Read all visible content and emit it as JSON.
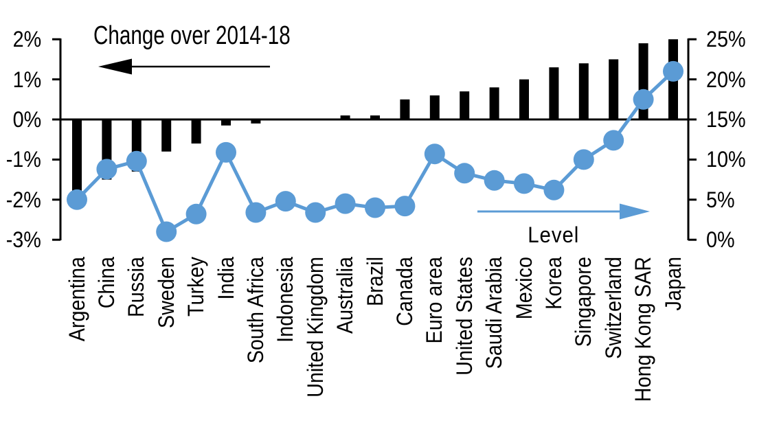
{
  "chart_data": {
    "type": "bar+line",
    "title": "Change over 2014-18",
    "categories": [
      "Argentina",
      "China",
      "Russia",
      "Sweden",
      "Turkey",
      "India",
      "South Africa",
      "Indonesia",
      "United Kingdom",
      "Australia",
      "Brazil",
      "Canada",
      "Euro area",
      "United States",
      "Saudi Arabia",
      "Mexico",
      "Korea",
      "Singapore",
      "Switzerland",
      "Hong Kong SAR",
      "Japan"
    ],
    "series": [
      {
        "name": "Change over 2014-18",
        "type": "bar",
        "axis": "left",
        "color": "#000000",
        "unit": "%",
        "values": [
          -1.8,
          -1.5,
          -1.3,
          -0.8,
          -0.6,
          -0.15,
          -0.1,
          0,
          0,
          0.1,
          0.1,
          0.5,
          0.6,
          0.7,
          0.8,
          1.0,
          1.3,
          1.4,
          1.5,
          1.9,
          2.0
        ]
      },
      {
        "name": "Level",
        "type": "line",
        "axis": "right",
        "color": "#5B9BD5",
        "unit": "%",
        "values": [
          5.0,
          8.8,
          9.8,
          1.0,
          3.2,
          10.9,
          3.4,
          4.8,
          3.4,
          4.5,
          4.0,
          4.2,
          10.7,
          8.3,
          7.4,
          7.0,
          6.2,
          10.0,
          12.4,
          17.5,
          21.0
        ]
      }
    ],
    "left_axis": {
      "tick_labels": [
        "2%",
        "1%",
        "0%",
        "-1%",
        "-2%",
        "-3%"
      ],
      "tick_values": [
        2,
        1,
        0,
        -1,
        -2,
        -3
      ],
      "min": -3,
      "max": 2
    },
    "right_axis": {
      "tick_labels": [
        "25%",
        "20%",
        "15%",
        "10%",
        "5%",
        "0%"
      ],
      "tick_values": [
        25,
        20,
        15,
        10,
        5,
        0
      ],
      "min": 0,
      "max": 25
    },
    "annotations": [
      {
        "text": "Change over 2014-18",
        "arrow_direction": "left",
        "color": "#000000"
      },
      {
        "text": "Level",
        "arrow_direction": "right",
        "color": "#5B9BD5"
      }
    ],
    "grid": false,
    "legend_position": "none",
    "colors": {
      "bar": "#000000",
      "line": "#5B9BD5",
      "background": "#ffffff",
      "text": "#000000"
    }
  }
}
